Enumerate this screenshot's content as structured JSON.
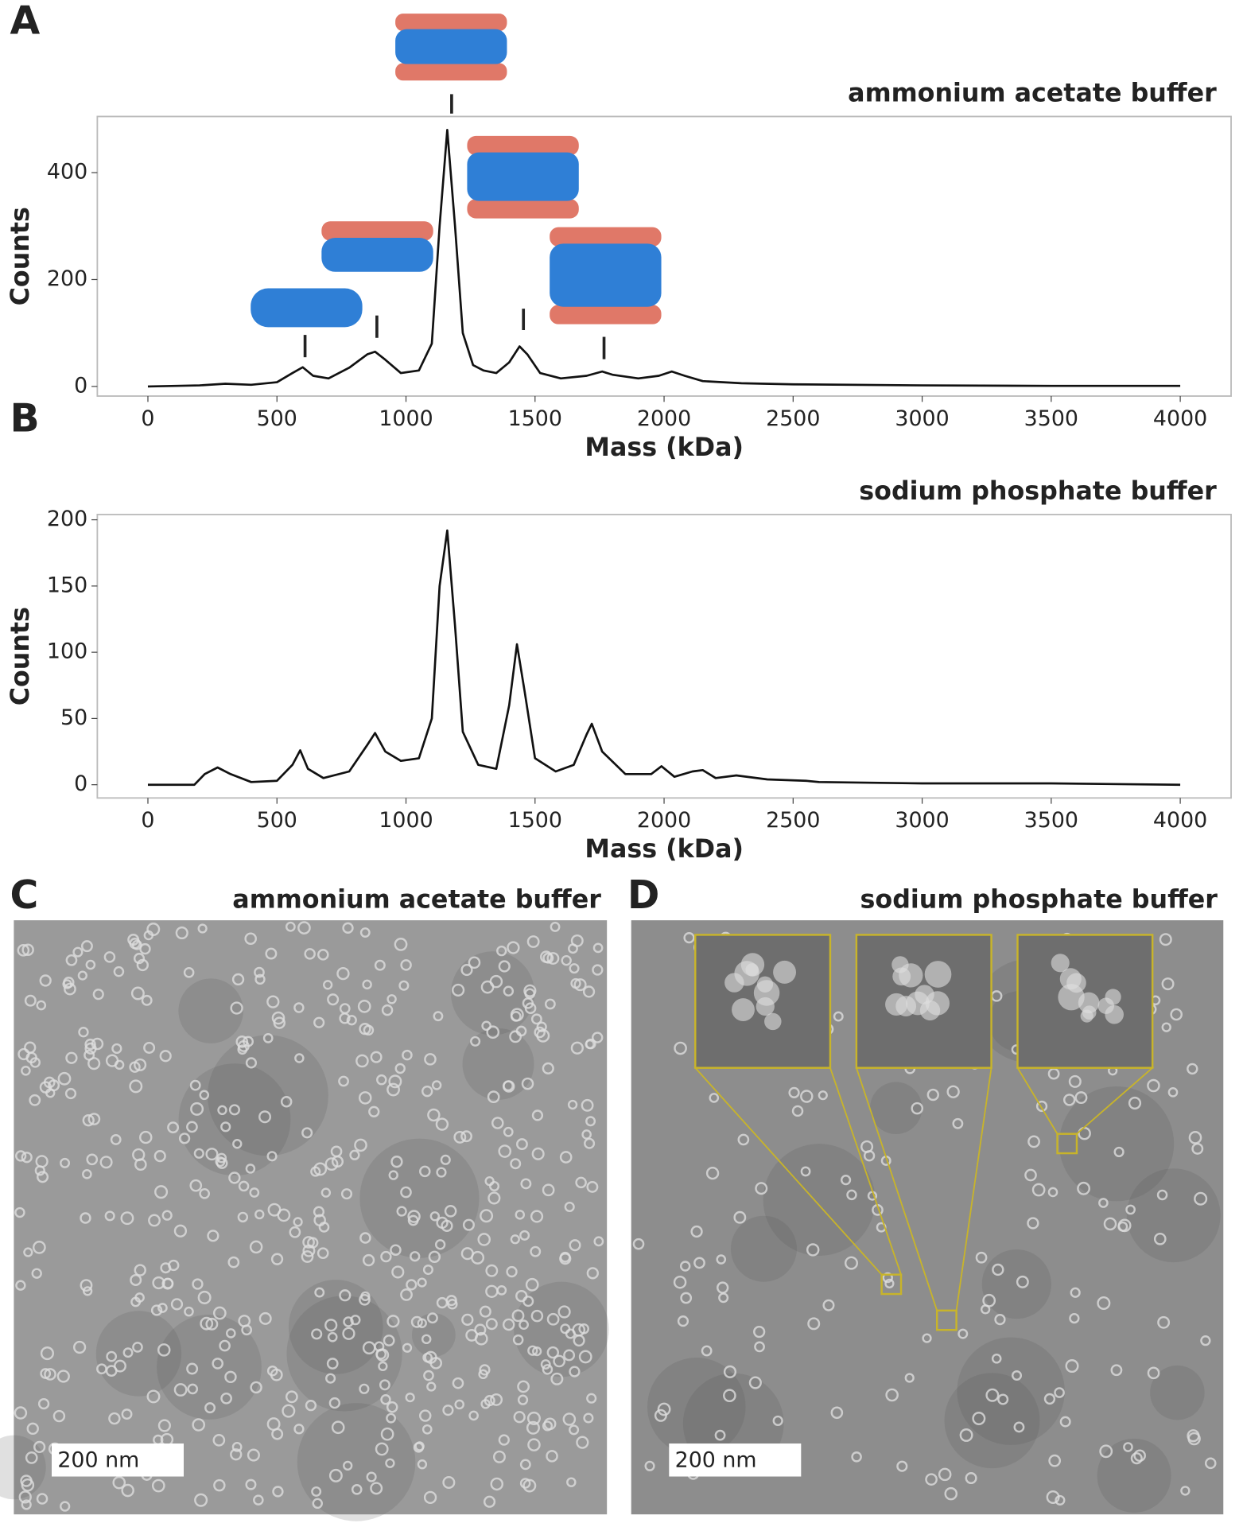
{
  "chart_data": [
    {
      "type": "line",
      "panel_label": "A",
      "title": "ammonium acetate buffer",
      "x_label": "Mass (kDa)",
      "y_label": "Counts",
      "color": "#111111",
      "x": [
        0,
        200,
        300,
        400,
        500,
        560,
        600,
        640,
        700,
        780,
        850,
        880,
        920,
        980,
        1050,
        1100,
        1130,
        1160,
        1190,
        1220,
        1260,
        1300,
        1350,
        1400,
        1440,
        1470,
        1520,
        1600,
        1700,
        1760,
        1800,
        1900,
        1980,
        2030,
        2080,
        2150,
        2300,
        2500,
        3000,
        3500,
        4000
      ],
      "values": [
        0,
        2,
        5,
        3,
        8,
        25,
        36,
        20,
        15,
        35,
        60,
        65,
        50,
        25,
        30,
        80,
        300,
        480,
        300,
        100,
        40,
        30,
        25,
        45,
        75,
        60,
        25,
        15,
        20,
        28,
        22,
        15,
        20,
        28,
        20,
        10,
        6,
        4,
        2,
        1,
        1
      ],
      "xlim": [
        -196,
        4197
      ],
      "xticks": [
        0,
        500,
        1000,
        1500,
        2000,
        2500,
        3000,
        3500,
        4000
      ],
      "ylim": [
        -18,
        505
      ],
      "yticks": [
        0,
        200,
        400
      ]
    },
    {
      "type": "line",
      "panel_label": "B",
      "title": "sodium phosphate buffer",
      "x_label": "Mass (kDa)",
      "y_label": "Counts",
      "color": "#111111",
      "x": [
        0,
        180,
        220,
        270,
        320,
        400,
        500,
        560,
        590,
        620,
        680,
        780,
        850,
        880,
        920,
        980,
        1050,
        1100,
        1130,
        1160,
        1190,
        1220,
        1280,
        1350,
        1400,
        1430,
        1460,
        1500,
        1580,
        1650,
        1700,
        1720,
        1760,
        1850,
        1950,
        1990,
        2040,
        2110,
        2150,
        2200,
        2280,
        2400,
        2550,
        2600,
        3000,
        3500,
        4000
      ],
      "values": [
        0,
        0,
        8,
        13,
        8,
        2,
        3,
        15,
        26,
        12,
        5,
        10,
        30,
        39,
        25,
        18,
        20,
        50,
        150,
        192,
        120,
        40,
        15,
        12,
        60,
        106,
        70,
        20,
        10,
        15,
        38,
        46,
        25,
        8,
        8,
        14,
        6,
        10,
        11,
        5,
        7,
        4,
        3,
        2,
        1,
        1,
        0
      ],
      "xlim": [
        -196,
        4197
      ],
      "xticks": [
        0,
        500,
        1000,
        1500,
        2000,
        2500,
        3000,
        3500,
        4000
      ],
      "ylim": [
        -10,
        204
      ],
      "yticks": [
        0,
        50,
        100,
        150,
        200
      ]
    }
  ],
  "micrographs": [
    {
      "panel_label": "C",
      "title": "ammonium acetate buffer",
      "scale_bar": "200 nm"
    },
    {
      "panel_label": "D",
      "title": "sodium phosphate buffer",
      "scale_bar": "200 nm"
    }
  ]
}
